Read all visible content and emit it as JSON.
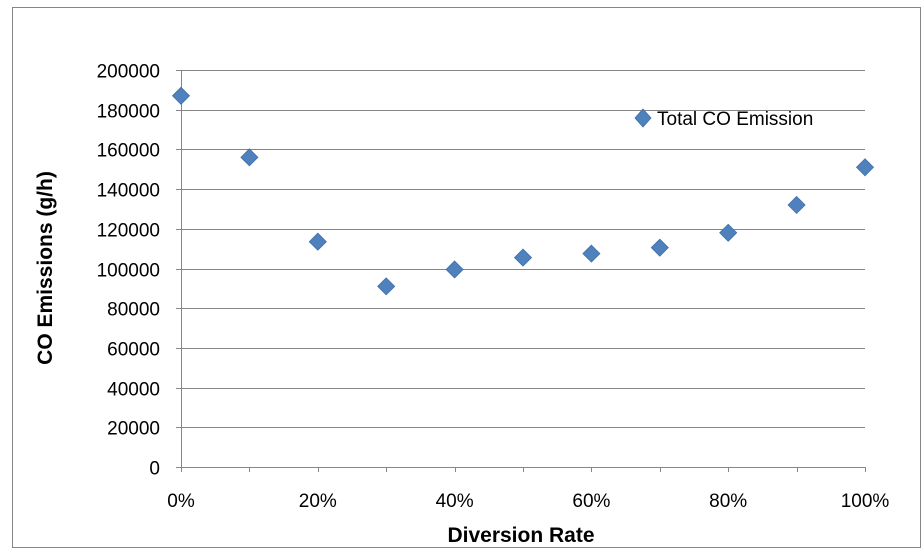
{
  "chart_data": {
    "type": "scatter",
    "title": "",
    "xlabel": "Diversion Rate",
    "ylabel": "CO Emissions (g/h)",
    "xlim": [
      0,
      1
    ],
    "ylim": [
      0,
      200000
    ],
    "x_ticks": [
      "0%",
      "20%",
      "40%",
      "60%",
      "80%",
      "100%"
    ],
    "y_ticks": [
      "0",
      "20000",
      "40000",
      "60000",
      "80000",
      "100000",
      "120000",
      "140000",
      "160000",
      "180000",
      "200000"
    ],
    "grid": "horizontal",
    "legend_position": "top-right",
    "series": [
      {
        "name": "Total CO Emission",
        "color": "#4f81bd",
        "marker": "diamond",
        "x": [
          0,
          0.1,
          0.2,
          0.3,
          0.4,
          0.5,
          0.6,
          0.7,
          0.8,
          0.9,
          1.0
        ],
        "values": [
          187000,
          156000,
          113500,
          91000,
          99500,
          105500,
          107500,
          110500,
          118000,
          132000,
          151000
        ]
      }
    ]
  }
}
